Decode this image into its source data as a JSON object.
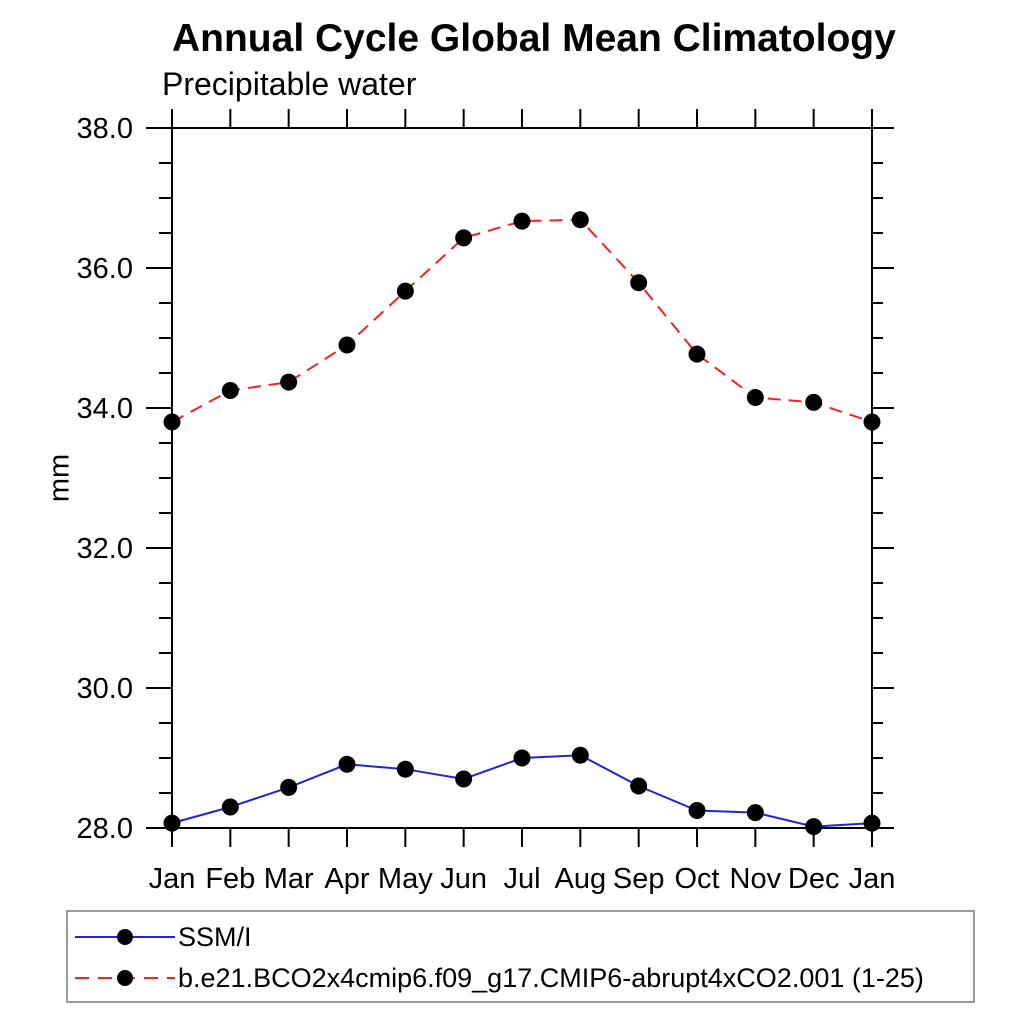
{
  "chart_data": {
    "type": "line",
    "title": "Annual Cycle Global Mean Climatology",
    "subtitle": "Precipitable water",
    "ylabel": "mm",
    "xlabel": "",
    "categories": [
      "Jan",
      "Feb",
      "Mar",
      "Apr",
      "May",
      "Jun",
      "Jul",
      "Aug",
      "Sep",
      "Oct",
      "Nov",
      "Dec",
      "Jan"
    ],
    "ylim": [
      28.0,
      38.0
    ],
    "y_major_step": 2.0,
    "y_minor_step": 0.5,
    "y_tick_labels": [
      "28.0",
      "30.0",
      "32.0",
      "34.0",
      "36.0",
      "38.0"
    ],
    "grid": false,
    "legend_position": "bottom-left-box",
    "axis_color": "#000000",
    "marker": "filled-circle",
    "series": [
      {
        "name": "SSM/I",
        "color": "#2222dd",
        "line_style": "solid",
        "marker_color": "#000000",
        "values": [
          28.07,
          28.3,
          28.58,
          28.91,
          28.84,
          28.7,
          29.0,
          29.04,
          28.6,
          28.25,
          28.22,
          28.02,
          28.07
        ]
      },
      {
        "name": "b.e21.BCO2x4cmip6.f09_g17.CMIP6-abrupt4xCO2.001 (1-25)",
        "color": "#f91f1f",
        "line_style": "dashed",
        "marker_color": "#000000",
        "values": [
          33.8,
          34.25,
          34.37,
          34.9,
          35.67,
          36.43,
          36.67,
          36.69,
          35.79,
          34.77,
          34.15,
          34.08,
          33.8
        ]
      }
    ]
  }
}
